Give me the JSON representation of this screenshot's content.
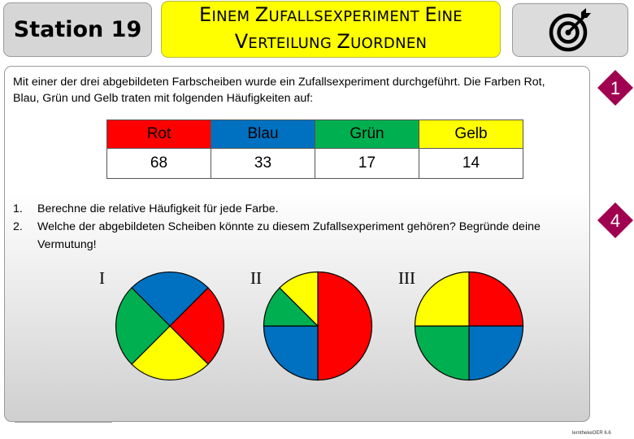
{
  "header": {
    "station": "Station 19",
    "title_line1": "Einem Zufallsexperiment eine",
    "title_line2": "Verteilung zuordnen",
    "icon": "target-icon"
  },
  "intro": "Mit einer der drei abgebildeten Farbscheiben wurde ein Zufallsexperiment durchgeführt. Die Farben Rot, Blau, Grün und Gelb traten mit folgenden Häufigkeiten auf:",
  "table": {
    "headers": [
      "Rot",
      "Blau",
      "Grün",
      "Gelb"
    ],
    "values": [
      "68",
      "33",
      "17",
      "14"
    ],
    "header_colors": [
      "#ff0000",
      "#0070c0",
      "#00b050",
      "#ffff00"
    ]
  },
  "tasks": [
    {
      "number": "1.",
      "text": "Berechne die relative Häufigkeit für jede Farbe."
    },
    {
      "number": "2.",
      "text": "Welche der abgebildeten Scheiben könnte zu diesem Zufallsexperiment gehören? Begründe deine Vermutung!"
    }
  ],
  "discs": {
    "labels": [
      "I",
      "II",
      "III"
    ],
    "colors": {
      "red": "#ff0000",
      "blue": "#0070c0",
      "green": "#00b050",
      "yellow": "#ffff00"
    }
  },
  "badges": [
    "1",
    "4"
  ],
  "badge_color": "#a00050",
  "footer": "lernthekeOER 6.6"
}
